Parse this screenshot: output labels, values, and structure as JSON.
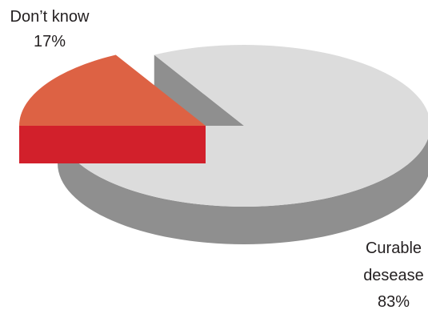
{
  "chart_data": {
    "type": "pie",
    "title": "",
    "three_d": true,
    "exploded_slice": "Don’t know",
    "slices": [
      {
        "label_lines": [
          "Curable",
          "desease"
        ],
        "value": 83,
        "value_label": "83%",
        "top_color": "#dcdcdc",
        "side_color": "#8f8f8f"
      },
      {
        "label_lines": [
          "Don’t know"
        ],
        "value": 17,
        "value_label": "17%",
        "top_color": "#dd6244",
        "side_color": "#d2202b"
      }
    ]
  }
}
